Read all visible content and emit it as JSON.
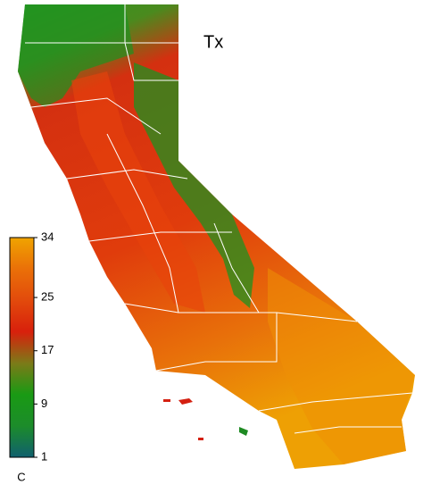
{
  "map": {
    "title": "Tx",
    "legend": {
      "unit": "C",
      "ticks": [
        1,
        9,
        17,
        25,
        34
      ],
      "colors": [
        "#10606e",
        "#1c8c2a",
        "#199a14",
        "#7c7a18",
        "#d8200c",
        "#e24a0c",
        "#ea7008",
        "#f0a400"
      ]
    }
  }
}
